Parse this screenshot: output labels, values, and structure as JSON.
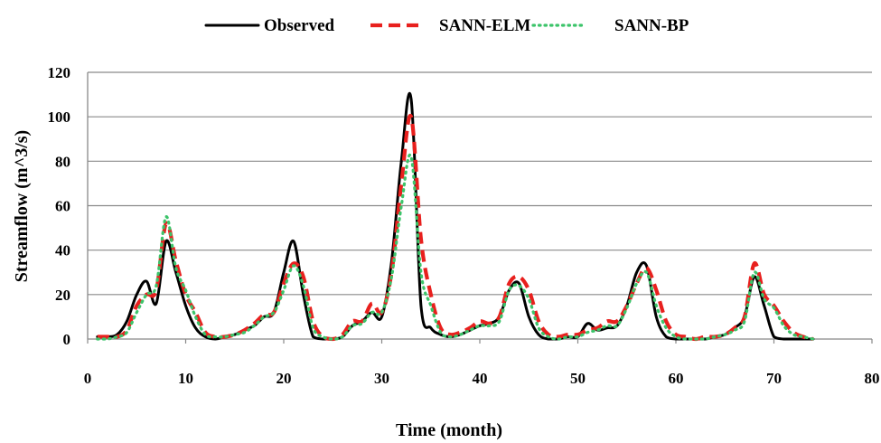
{
  "chart_data": {
    "type": "line",
    "title": "",
    "xlabel": "Time (month)",
    "ylabel": "Streamflow (m^3/s)",
    "xlim": [
      0,
      80
    ],
    "ylim": [
      0,
      120
    ],
    "xticks": [
      0,
      10,
      20,
      30,
      40,
      50,
      60,
      70,
      80
    ],
    "yticks": [
      0,
      20,
      40,
      60,
      80,
      100,
      120
    ],
    "grid": "horizontal",
    "legend": "top-center",
    "series": [
      {
        "name": "Observed",
        "color": "#000000",
        "style": "solid",
        "x": [
          1,
          2,
          3,
          4,
          5,
          6,
          7,
          8,
          9,
          10,
          11,
          12,
          13,
          14,
          15,
          16,
          17,
          18,
          19,
          20,
          21,
          22,
          23,
          24,
          25,
          26,
          27,
          28,
          29,
          30,
          31,
          32,
          33,
          34,
          35,
          36,
          37,
          38,
          39,
          40,
          41,
          42,
          43,
          44,
          45,
          46,
          47,
          48,
          49,
          50,
          51,
          52,
          53,
          54,
          55,
          56,
          57,
          58,
          59,
          60,
          61,
          62,
          63,
          64,
          65,
          66,
          67,
          68,
          69,
          70,
          71,
          72,
          73,
          74
        ],
        "values": [
          1,
          1,
          2,
          8,
          20,
          26,
          16,
          44,
          30,
          15,
          5,
          1,
          0,
          1,
          2,
          4,
          6,
          10,
          12,
          30,
          44,
          20,
          1,
          0,
          0,
          1,
          6,
          8,
          12,
          10,
          35,
          80,
          108,
          15,
          5,
          2,
          1,
          2,
          4,
          6,
          7,
          10,
          22,
          25,
          10,
          2,
          0,
          0,
          1,
          1,
          7,
          4,
          5,
          6,
          15,
          30,
          33,
          10,
          1,
          0,
          0,
          0,
          0,
          1,
          2,
          5,
          10,
          28,
          15,
          1,
          0,
          0,
          0,
          0
        ]
      },
      {
        "name": "SANN-ELM",
        "color": "#e8201e",
        "style": "dashed",
        "x": [
          1,
          2,
          3,
          4,
          5,
          6,
          7,
          8,
          9,
          10,
          11,
          12,
          13,
          14,
          15,
          16,
          17,
          18,
          19,
          20,
          21,
          22,
          23,
          24,
          25,
          26,
          27,
          28,
          29,
          30,
          31,
          32,
          33,
          34,
          35,
          36,
          37,
          38,
          39,
          40,
          41,
          42,
          43,
          44,
          45,
          46,
          47,
          48,
          49,
          50,
          51,
          52,
          53,
          54,
          55,
          56,
          57,
          58,
          59,
          60,
          61,
          62,
          63,
          64,
          65,
          66,
          67,
          68,
          69,
          70,
          71,
          72,
          73,
          74
        ],
        "values": [
          1,
          1,
          1,
          4,
          15,
          20,
          22,
          52,
          35,
          20,
          12,
          3,
          1,
          1,
          2,
          4,
          7,
          11,
          12,
          25,
          34,
          28,
          8,
          1,
          0,
          2,
          8,
          8,
          16,
          12,
          30,
          70,
          100,
          45,
          20,
          5,
          2,
          3,
          5,
          8,
          7,
          10,
          25,
          28,
          22,
          8,
          2,
          1,
          2,
          2,
          4,
          5,
          8,
          8,
          15,
          25,
          32,
          22,
          8,
          2,
          1,
          0,
          1,
          1,
          2,
          5,
          10,
          34,
          20,
          15,
          8,
          3,
          1,
          0
        ]
      },
      {
        "name": "SANN-BP",
        "color": "#3cc46a",
        "style": "dotted",
        "x": [
          1,
          2,
          3,
          4,
          5,
          6,
          7,
          8,
          9,
          10,
          11,
          12,
          13,
          14,
          15,
          16,
          17,
          18,
          19,
          20,
          21,
          22,
          23,
          24,
          25,
          26,
          27,
          28,
          29,
          30,
          31,
          32,
          33,
          34,
          35,
          36,
          37,
          38,
          39,
          40,
          41,
          42,
          43,
          44,
          45,
          46,
          47,
          48,
          49,
          50,
          51,
          52,
          53,
          54,
          55,
          56,
          57,
          58,
          59,
          60,
          61,
          62,
          63,
          64,
          65,
          66,
          67,
          68,
          69,
          70,
          71,
          72,
          73,
          74
        ],
        "values": [
          0,
          0,
          1,
          3,
          12,
          20,
          24,
          55,
          32,
          22,
          10,
          2,
          1,
          1,
          2,
          3,
          6,
          10,
          12,
          22,
          33,
          24,
          5,
          1,
          0,
          1,
          6,
          7,
          12,
          12,
          28,
          60,
          82,
          30,
          15,
          3,
          1,
          2,
          4,
          6,
          6,
          8,
          22,
          24,
          18,
          5,
          1,
          0,
          1,
          1,
          3,
          4,
          6,
          6,
          14,
          25,
          30,
          15,
          5,
          1,
          0,
          0,
          0,
          1,
          2,
          4,
          8,
          30,
          18,
          14,
          6,
          2,
          1,
          0
        ]
      }
    ]
  }
}
